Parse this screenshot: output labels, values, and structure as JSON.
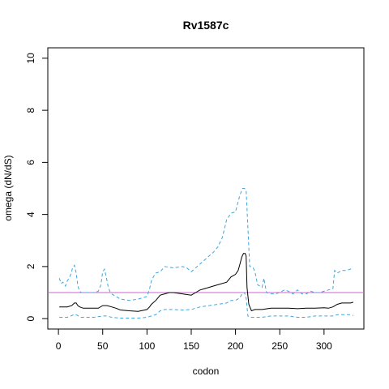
{
  "chart_data": {
    "type": "line",
    "title": "Rv1587c",
    "xlabel": "codon",
    "ylabel": "omega (dN/dS)",
    "xlim": [
      -12,
      345
    ],
    "ylim": [
      -0.4,
      10.4
    ],
    "xticks": [
      0,
      50,
      100,
      150,
      200,
      250,
      300
    ],
    "yticks": [
      0,
      2,
      4,
      6,
      8,
      10
    ],
    "reference_line": {
      "y": 1,
      "color": "#cc66cc"
    },
    "colors": {
      "estimate": "#000000",
      "interval": "#3ea6e0"
    },
    "grid": false,
    "legend": "none",
    "series": [
      {
        "role": "upper",
        "style": "dashed",
        "x": [
          1,
          3,
          5,
          8,
          10,
          12,
          14,
          16,
          18,
          20,
          22,
          24,
          26,
          30,
          35,
          40,
          45,
          48,
          50,
          52,
          54,
          56,
          58,
          60,
          65,
          70,
          80,
          90,
          100,
          103,
          105,
          108,
          110,
          115,
          120,
          130,
          140,
          145,
          150,
          155,
          160,
          165,
          170,
          175,
          180,
          185,
          190,
          195,
          200,
          203,
          205,
          208,
          210,
          212,
          214,
          216,
          218,
          220,
          222,
          225,
          230,
          232,
          235,
          240,
          245,
          250,
          255,
          260,
          265,
          270,
          275,
          280,
          285,
          290,
          295,
          300,
          305,
          310,
          312,
          315,
          320,
          325,
          330,
          332
        ],
        "y": [
          1.55,
          1.35,
          1.4,
          1.25,
          1.45,
          1.55,
          1.7,
          1.95,
          2.05,
          1.75,
          1.25,
          1.05,
          1.0,
          1.0,
          1.0,
          1.0,
          1.05,
          1.3,
          1.8,
          1.9,
          1.6,
          1.25,
          1.05,
          0.95,
          0.85,
          0.75,
          0.7,
          0.75,
          0.85,
          1.15,
          1.45,
          1.65,
          1.75,
          1.8,
          2.0,
          1.95,
          2.0,
          1.95,
          1.8,
          1.95,
          2.1,
          2.25,
          2.4,
          2.55,
          2.75,
          3.1,
          3.8,
          4.05,
          4.1,
          4.5,
          4.75,
          5.0,
          5.0,
          4.95,
          3.5,
          2.0,
          2.0,
          1.95,
          1.8,
          1.3,
          1.2,
          1.55,
          1.0,
          0.95,
          0.95,
          1.0,
          1.1,
          1.05,
          0.95,
          1.1,
          0.95,
          0.95,
          1.05,
          1.0,
          1.0,
          1.05,
          1.1,
          1.15,
          1.85,
          1.75,
          1.85,
          1.85,
          1.9,
          2.0
        ]
      },
      {
        "role": "estimate",
        "style": "solid",
        "x": [
          1,
          5,
          10,
          15,
          18,
          20,
          22,
          24,
          28,
          35,
          45,
          50,
          55,
          60,
          65,
          70,
          80,
          90,
          100,
          103,
          105,
          110,
          115,
          120,
          125,
          130,
          140,
          150,
          155,
          160,
          170,
          180,
          190,
          195,
          200,
          203,
          205,
          207,
          209,
          211,
          212,
          213,
          215,
          218,
          222,
          230,
          240,
          250,
          260,
          270,
          280,
          290,
          300,
          305,
          310,
          315,
          320,
          330,
          333
        ],
        "y": [
          0.45,
          0.45,
          0.45,
          0.5,
          0.6,
          0.6,
          0.5,
          0.45,
          0.4,
          0.4,
          0.4,
          0.5,
          0.5,
          0.45,
          0.4,
          0.33,
          0.3,
          0.28,
          0.35,
          0.45,
          0.55,
          0.7,
          0.9,
          0.95,
          1.0,
          1.0,
          0.95,
          0.9,
          1.0,
          1.1,
          1.2,
          1.3,
          1.4,
          1.6,
          1.7,
          1.85,
          2.1,
          2.35,
          2.5,
          2.5,
          2.4,
          1.2,
          0.55,
          0.3,
          0.35,
          0.35,
          0.4,
          0.4,
          0.4,
          0.38,
          0.4,
          0.4,
          0.42,
          0.4,
          0.45,
          0.55,
          0.6,
          0.6,
          0.63
        ]
      },
      {
        "role": "lower",
        "style": "dashed",
        "x": [
          1,
          10,
          14,
          17,
          20,
          25,
          30,
          40,
          50,
          55,
          60,
          70,
          80,
          90,
          100,
          105,
          110,
          115,
          120,
          130,
          140,
          150,
          160,
          170,
          180,
          190,
          195,
          200,
          205,
          208,
          210,
          212,
          214,
          216,
          220,
          230,
          240,
          250,
          260,
          270,
          280,
          290,
          300,
          305,
          310,
          315,
          320,
          330,
          333
        ],
        "y": [
          0.05,
          0.05,
          0.1,
          0.15,
          0.15,
          0.05,
          0.05,
          0.05,
          0.1,
          0.1,
          0.05,
          0.02,
          0.02,
          0.02,
          0.05,
          0.1,
          0.15,
          0.3,
          0.35,
          0.35,
          0.33,
          0.35,
          0.45,
          0.5,
          0.55,
          0.6,
          0.7,
          0.7,
          0.8,
          1.0,
          1.0,
          0.8,
          0.1,
          0.05,
          0.05,
          0.05,
          0.1,
          0.1,
          0.1,
          0.05,
          0.05,
          0.1,
          0.1,
          0.1,
          0.1,
          0.15,
          0.15,
          0.15,
          0.12
        ]
      }
    ]
  }
}
